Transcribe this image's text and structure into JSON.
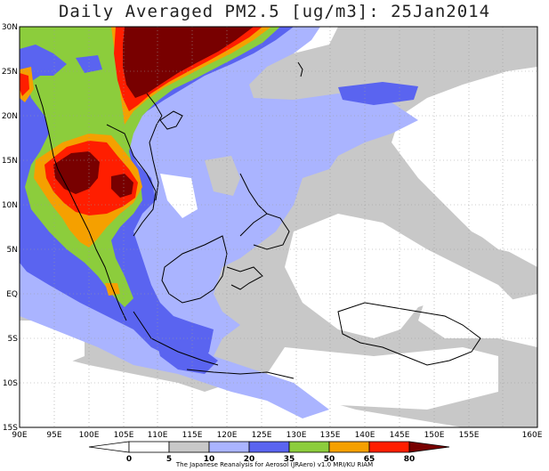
{
  "title": "Daily Averaged PM2.5 [ug/m3]: 25Jan2014",
  "credit": "The Japanese Reanalysis for Aerosol (JRAero) v1.0 MRI/KU RIAM",
  "lat_labels": [
    "30N",
    "25N",
    "20N",
    "15N",
    "10N",
    "5N",
    "EQ",
    "5S",
    "10S",
    "15S"
  ],
  "lon_labels": [
    "90E",
    "95E",
    "100E",
    "105E",
    "110E",
    "115E",
    "120E",
    "125E",
    "130E",
    "135E",
    "140E",
    "145E",
    "150E",
    "155E",
    "160E"
  ],
  "colorbar": {
    "ticks": [
      "0",
      "5",
      "10",
      "20",
      "35",
      "50",
      "65",
      "80"
    ],
    "colors": [
      "#ffffff",
      "#ffffff",
      "#c8c8c8",
      "#aab4ff",
      "#5a64f0",
      "#8ccd3c",
      "#f5a000",
      "#ff1e00",
      "#780000"
    ]
  },
  "levels": [
    {
      "range": "10-20",
      "color": "#c8c8c8"
    },
    {
      "range": "20-35",
      "color": "#aab4ff"
    },
    {
      "range": "35-50",
      "color": "#5a64f0"
    },
    {
      "range": "50-65",
      "color": "#8ccd3c"
    },
    {
      "range": "65-80",
      "color": "#f5a000"
    },
    {
      "range": "80+",
      "color": "#ff1e00"
    },
    {
      "range": ">80 max",
      "color": "#780000"
    }
  ]
}
